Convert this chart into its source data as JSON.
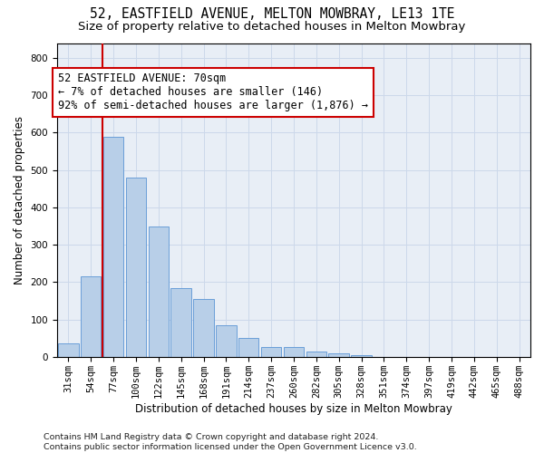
{
  "title1": "52, EASTFIELD AVENUE, MELTON MOWBRAY, LE13 1TE",
  "title2": "Size of property relative to detached houses in Melton Mowbray",
  "xlabel": "Distribution of detached houses by size in Melton Mowbray",
  "ylabel": "Number of detached properties",
  "categories": [
    "31sqm",
    "54sqm",
    "77sqm",
    "100sqm",
    "122sqm",
    "145sqm",
    "168sqm",
    "191sqm",
    "214sqm",
    "237sqm",
    "260sqm",
    "282sqm",
    "305sqm",
    "328sqm",
    "351sqm",
    "374sqm",
    "397sqm",
    "419sqm",
    "442sqm",
    "465sqm",
    "488sqm"
  ],
  "values": [
    35,
    215,
    590,
    480,
    350,
    185,
    155,
    85,
    50,
    25,
    25,
    15,
    10,
    5,
    0,
    0,
    0,
    0,
    0,
    0,
    0
  ],
  "bar_color": "#b8cfe8",
  "bar_edge_color": "#6a9fd8",
  "vline_color": "#cc0000",
  "vline_x": 1.5,
  "annotation_text": "52 EASTFIELD AVENUE: 70sqm\n← 7% of detached houses are smaller (146)\n92% of semi-detached houses are larger (1,876) →",
  "annotation_box_edge_color": "#cc0000",
  "annotation_fontsize": 8.5,
  "title1_fontsize": 10.5,
  "title2_fontsize": 9.5,
  "xlabel_fontsize": 8.5,
  "ylabel_fontsize": 8.5,
  "tick_fontsize": 7.5,
  "footer_text": "Contains HM Land Registry data © Crown copyright and database right 2024.\nContains public sector information licensed under the Open Government Licence v3.0.",
  "ylim": [
    0,
    840
  ],
  "yticks": [
    0,
    100,
    200,
    300,
    400,
    500,
    600,
    700,
    800
  ],
  "grid_color": "#ccd8ea",
  "background_color": "#e8eef6"
}
